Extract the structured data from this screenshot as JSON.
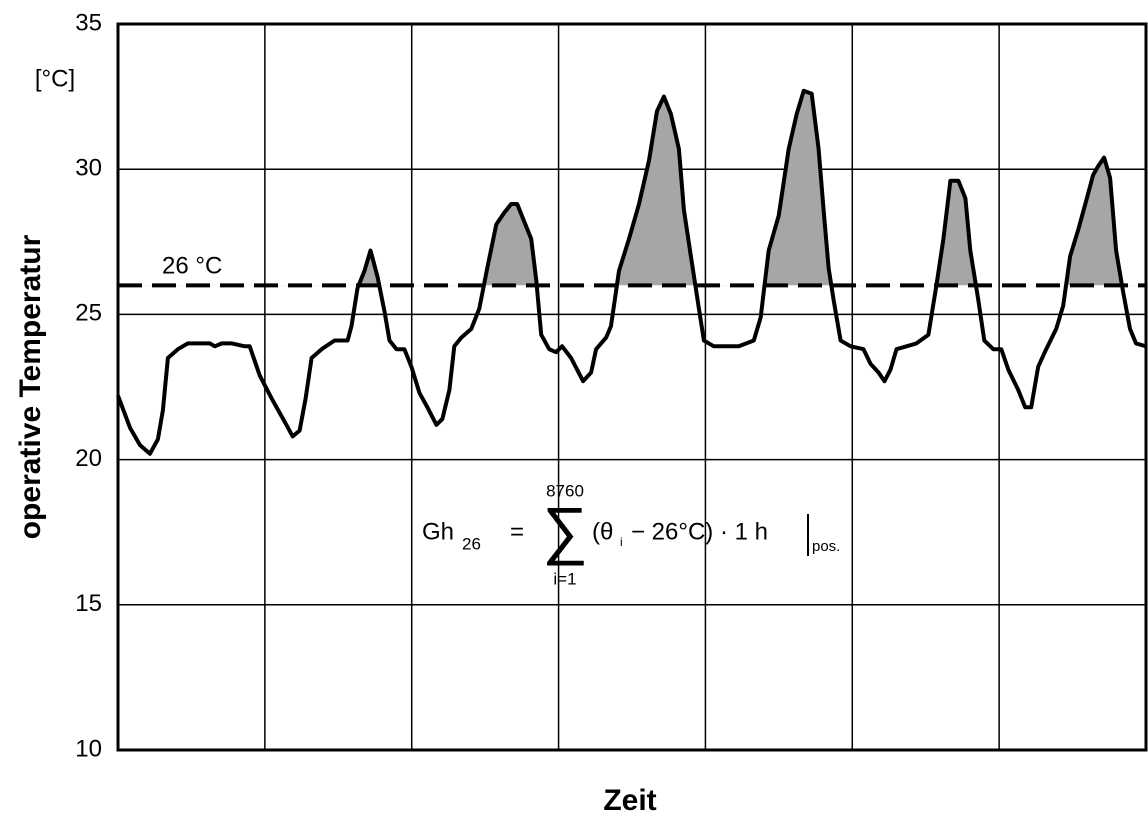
{
  "chart_data": {
    "type": "line",
    "y_label": "operative Temperatur",
    "y_unit": "[°C]",
    "x_label": "Zeit",
    "ylim": [
      10,
      35
    ],
    "yticks": [
      10,
      15,
      20,
      25,
      30,
      35
    ],
    "xlim": [
      0,
      1030
    ],
    "grid": true,
    "color": "#000000",
    "fill_color": "#a6a6a6",
    "threshold": 26,
    "threshold_label": "26 °C",
    "formula": {
      "lhs": "Gh",
      "lhs_sub": "26",
      "equals": "=",
      "sigma": "∑",
      "upper": "8760",
      "lower": "i=1",
      "open": "(θ",
      "theta_sub": "i",
      "rest": "− 26°C) · 1 h",
      "cond": "pos."
    },
    "x": [
      0,
      12,
      22,
      32,
      40,
      45,
      50,
      60,
      70,
      92,
      97,
      104,
      114,
      127,
      132,
      142,
      154,
      167,
      175,
      182,
      188,
      194,
      204,
      217,
      230,
      234,
      240,
      247,
      253,
      260,
      267,
      272,
      279,
      287,
      294,
      302,
      310,
      319,
      325,
      332,
      337,
      344,
      354,
      362,
      370,
      379,
      387,
      394,
      400,
      407,
      414,
      419,
      424,
      432,
      439,
      445,
      454,
      460,
      466,
      474,
      479,
      489,
      494,
      502,
      512,
      522,
      532,
      540,
      547,
      554,
      562,
      567,
      574,
      582,
      587,
      597,
      622,
      637,
      644,
      652,
      662,
      672,
      680,
      687,
      695,
      702,
      707,
      712,
      717,
      724,
      734,
      747,
      754,
      762,
      768,
      774,
      780,
      790,
      800,
      812,
      820,
      827,
      834,
      842,
      849,
      854,
      862,
      868,
      877,
      885,
      892,
      902,
      909,
      915,
      922,
      930,
      940,
      947,
      954,
      962,
      970,
      977,
      982,
      988,
      994,
      1000,
      1007,
      1014,
      1020,
      1030
    ],
    "values": [
      22.2,
      21.1,
      20.5,
      20.2,
      20.7,
      21.7,
      23.5,
      23.8,
      24.0,
      24.0,
      23.9,
      24.0,
      24.0,
      23.9,
      23.9,
      22.9,
      22.1,
      21.3,
      20.8,
      21.0,
      22.1,
      23.5,
      23.8,
      24.1,
      24.1,
      24.6,
      25.9,
      26.5,
      27.2,
      26.3,
      25.1,
      24.1,
      23.8,
      23.8,
      23.2,
      22.3,
      21.8,
      21.2,
      21.4,
      22.4,
      23.9,
      24.2,
      24.5,
      25.2,
      26.6,
      28.1,
      28.5,
      28.8,
      28.8,
      28.2,
      27.6,
      26.2,
      24.3,
      23.8,
      23.7,
      23.9,
      23.5,
      23.1,
      22.7,
      23.0,
      23.8,
      24.2,
      24.6,
      26.5,
      27.6,
      28.8,
      30.3,
      32.0,
      32.5,
      31.9,
      30.7,
      28.6,
      27.0,
      25.2,
      24.1,
      23.9,
      23.9,
      24.1,
      24.9,
      27.2,
      28.4,
      30.7,
      31.9,
      32.7,
      32.6,
      30.7,
      28.6,
      26.6,
      25.5,
      24.1,
      23.9,
      23.8,
      23.3,
      23.0,
      22.7,
      23.1,
      23.8,
      23.9,
      24.0,
      24.3,
      26.0,
      27.6,
      29.6,
      29.6,
      29.0,
      27.2,
      25.5,
      24.1,
      23.8,
      23.8,
      23.1,
      22.4,
      21.8,
      21.8,
      23.2,
      23.8,
      24.5,
      25.3,
      27.0,
      27.9,
      28.9,
      29.8,
      30.1,
      30.4,
      29.7,
      27.2,
      25.8,
      24.5,
      24.0,
      23.9
    ]
  }
}
